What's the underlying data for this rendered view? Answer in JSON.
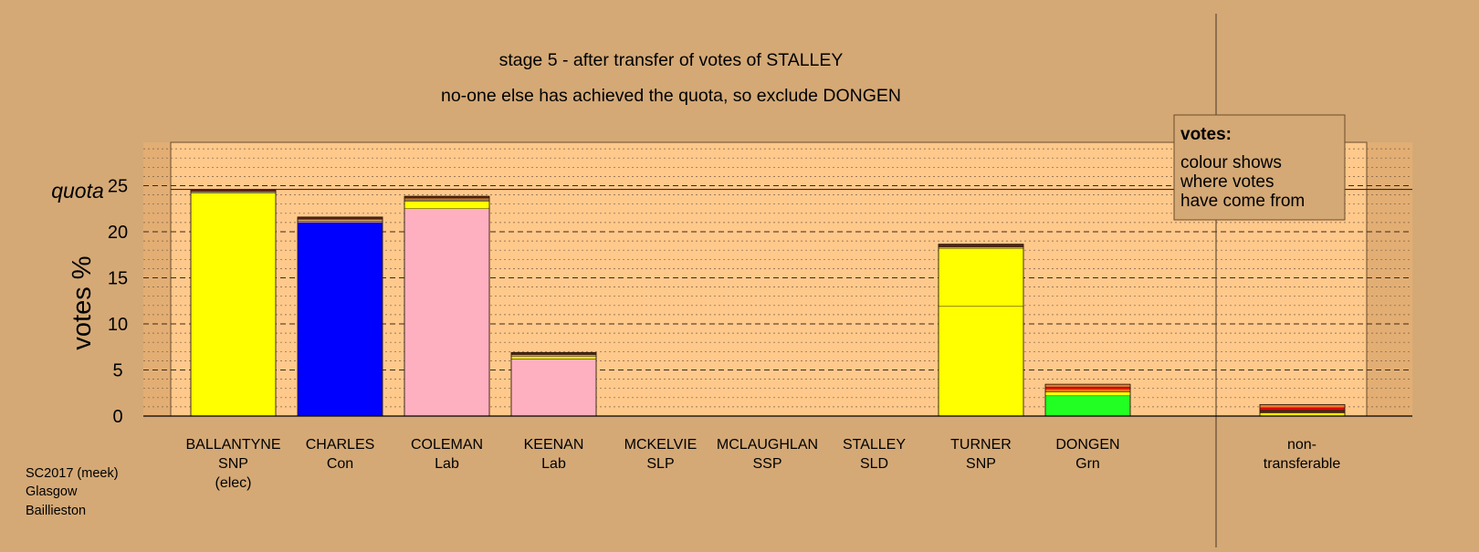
{
  "chart_data": {
    "type": "bar",
    "title": "stage 5 - after transfer of votes of STALLEY",
    "subtitle": "no-one else has achieved the quota, so exclude DONGEN",
    "ylabel": "votes %",
    "ylim": [
      0,
      30
    ],
    "yticks": [
      0,
      5,
      10,
      15,
      20,
      25
    ],
    "quota": {
      "label": "quota",
      "value": 24.6
    },
    "candidates": [
      {
        "name": "BALLANTYNE",
        "party": "SNP",
        "note": "(elec)",
        "segments": [
          {
            "value": 24.2,
            "color": "#ffff00"
          },
          {
            "value": 0.15,
            "color": "#d9d96a"
          },
          {
            "value": 0.25,
            "color": "#5a2010"
          }
        ]
      },
      {
        "name": "CHARLES",
        "party": "Con",
        "note": "",
        "segments": [
          {
            "value": 21.0,
            "color": "#0000ff"
          },
          {
            "value": 0.15,
            "color": "#ffb0c0"
          },
          {
            "value": 0.2,
            "color": "#d0b060"
          },
          {
            "value": 0.25,
            "color": "#5a2010"
          }
        ]
      },
      {
        "name": "COLEMAN",
        "party": "Lab",
        "note": "",
        "segments": [
          {
            "value": 22.5,
            "color": "#ffb0c0"
          },
          {
            "value": 0.8,
            "color": "#ffff00"
          },
          {
            "value": 0.15,
            "color": "#d0b060"
          },
          {
            "value": 0.2,
            "color": "#e07820"
          },
          {
            "value": 0.2,
            "color": "#5a2010"
          }
        ]
      },
      {
        "name": "KEENAN",
        "party": "Lab",
        "note": "",
        "segments": [
          {
            "value": 6.2,
            "color": "#ffb0c0"
          },
          {
            "value": 0.25,
            "color": "#ffff00"
          },
          {
            "value": 0.2,
            "color": "#d0b060"
          },
          {
            "value": 0.25,
            "color": "#5a2010"
          }
        ]
      },
      {
        "name": "MCKELVIE",
        "party": "SLP",
        "note": "",
        "segments": []
      },
      {
        "name": "MCLAUGHLAN",
        "party": "SSP",
        "note": "",
        "segments": []
      },
      {
        "name": "STALLEY",
        "party": "SLD",
        "note": "",
        "segments": []
      },
      {
        "name": "TURNER",
        "party": "SNP",
        "note": "",
        "segments": [
          {
            "value": 11.9,
            "color": "#ffff00"
          },
          {
            "value": 6.3,
            "color": "#ffff00"
          },
          {
            "value": 0.15,
            "color": "#d0b060"
          },
          {
            "value": 0.3,
            "color": "#5a2010"
          }
        ]
      },
      {
        "name": "DONGEN",
        "party": "Grn",
        "note": "",
        "segments": [
          {
            "value": 2.2,
            "color": "#22ff22"
          },
          {
            "value": 0.4,
            "color": "#ffff00"
          },
          {
            "value": 0.35,
            "color": "#e07820"
          },
          {
            "value": 0.2,
            "color": "#ff0000"
          },
          {
            "value": 0.3,
            "color": "#ee7a30"
          }
        ]
      }
    ],
    "nontransferable": {
      "label_lines": [
        "non-",
        "transferable"
      ],
      "segments": [
        {
          "value": 0.35,
          "color": "#ffff00"
        },
        {
          "value": 0.3,
          "color": "#5a2010"
        },
        {
          "value": 0.25,
          "color": "#ff0000"
        },
        {
          "value": 0.35,
          "color": "#ee7a30"
        }
      ]
    },
    "legend": {
      "title": "votes:",
      "lines": [
        "colour shows",
        "where votes",
        "have come from"
      ],
      "position": "top-right"
    }
  },
  "footer": {
    "lines": [
      "SC2017 (meek)",
      "Glasgow",
      "Baillieston"
    ]
  }
}
